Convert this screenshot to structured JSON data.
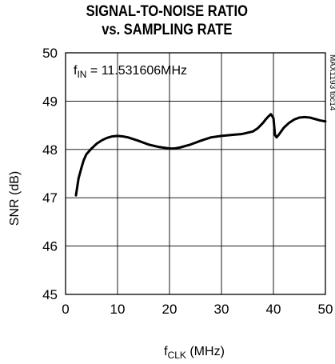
{
  "chart_data": {
    "type": "line",
    "title_line1": "SIGNAL-TO-NOISE RATIO",
    "title_line2": "vs. SAMPLING RATE",
    "xlabel_main": "f",
    "xlabel_sub": "CLK",
    "xlabel_unit": " (MHz)",
    "ylabel": "SNR (dB)",
    "annotation_main": "f",
    "annotation_sub": "IN",
    "annotation_rest": " = 11.531606MHz",
    "side_label": "MAX1193 toc14",
    "xlim": [
      0,
      50
    ],
    "ylim": [
      45,
      50
    ],
    "xticks": [
      "0",
      "10",
      "20",
      "30",
      "40",
      "50"
    ],
    "yticks": [
      "45",
      "46",
      "47",
      "48",
      "49",
      "50"
    ],
    "grid": true,
    "series": [
      {
        "x": [
          2.0,
          2.5,
          3.0,
          3.5,
          4.0,
          5.0,
          6.0,
          7.0,
          8.0,
          9.0,
          10.0,
          11.0,
          12.0,
          14.0,
          16.0,
          18.0,
          20.0,
          21.0,
          22.0,
          24.0,
          26.0,
          28.0,
          30.0,
          32.0,
          34.0,
          36.0,
          37.0,
          38.0,
          38.5,
          39.0,
          39.5,
          40.0,
          40.3,
          40.6,
          41.0,
          42.0,
          43.0,
          44.0,
          45.0,
          46.0,
          47.0,
          48.0,
          49.0,
          50.0
        ],
        "y": [
          47.05,
          47.4,
          47.6,
          47.78,
          47.9,
          48.02,
          48.12,
          48.19,
          48.24,
          48.27,
          48.28,
          48.27,
          48.25,
          48.18,
          48.1,
          48.05,
          48.02,
          48.02,
          48.04,
          48.1,
          48.18,
          48.25,
          48.28,
          48.3,
          48.32,
          48.37,
          48.44,
          48.55,
          48.62,
          48.68,
          48.73,
          48.65,
          48.3,
          48.25,
          48.3,
          48.45,
          48.55,
          48.62,
          48.66,
          48.67,
          48.66,
          48.63,
          48.6,
          48.58
        ]
      }
    ]
  }
}
